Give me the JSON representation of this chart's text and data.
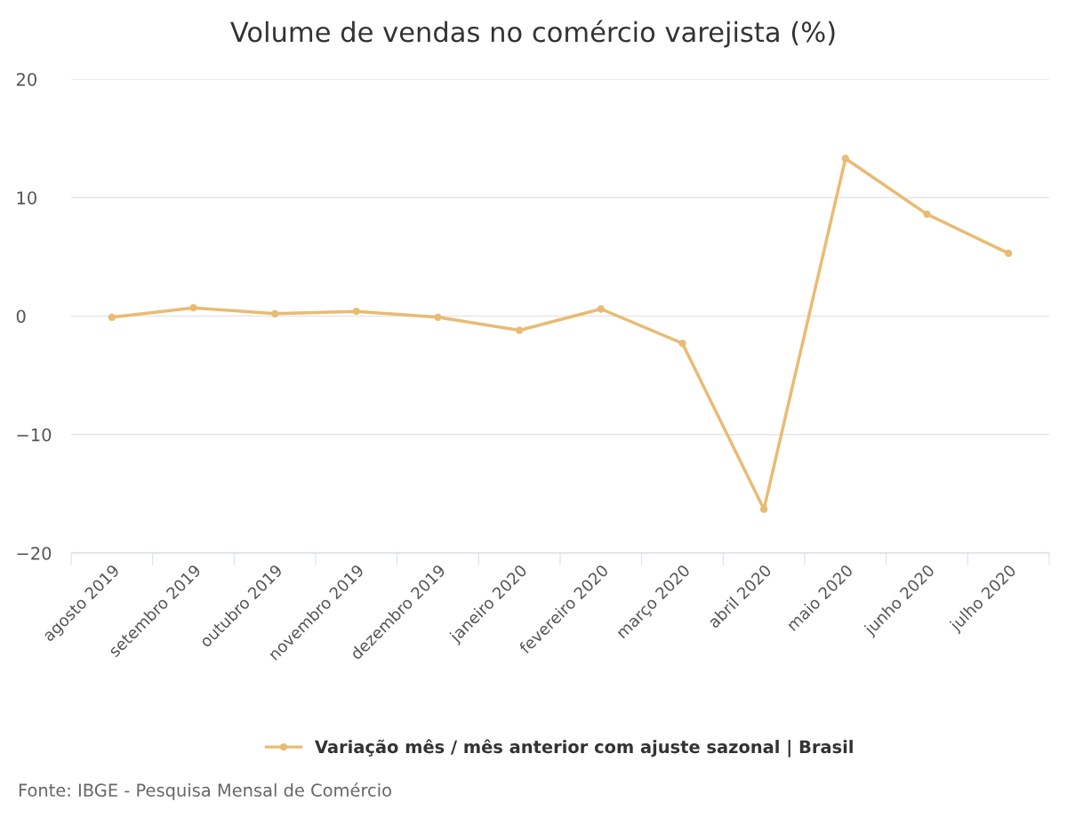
{
  "chart_data": {
    "type": "line",
    "title": "Volume de vendas no comércio varejista (%)",
    "categories": [
      "agosto 2019",
      "setembro 2019",
      "outubro 2019",
      "novembro 2019",
      "dezembro 2019",
      "janeiro 2020",
      "fevereiro 2020",
      "março 2020",
      "abril 2020",
      "maio 2020",
      "junho 2020",
      "julho 2020"
    ],
    "series": [
      {
        "name": "Variação mês / mês anterior com ajuste sazonal | Brasil",
        "color": "#e9bb72",
        "values": [
          -0.1,
          0.7,
          0.2,
          0.4,
          -0.1,
          -1.2,
          0.6,
          -2.3,
          -16.3,
          13.3,
          8.6,
          5.3
        ]
      }
    ],
    "ylim": [
      -20,
      20
    ],
    "yticks": [
      -20,
      -10,
      0,
      10,
      20
    ],
    "grid": "y",
    "legend": "bottom",
    "marker": "circle",
    "line_style": "solid",
    "annotations": [
      "Fonte: IBGE - Pesquisa Mensal de Comércio"
    ]
  }
}
